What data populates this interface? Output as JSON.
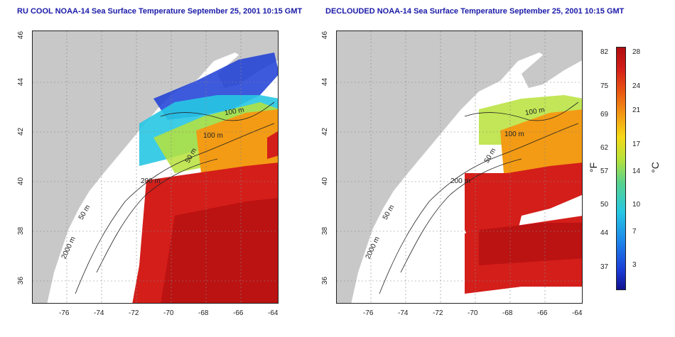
{
  "titles": {
    "left": "RU COOL NOAA-14 Sea Surface Temperature September 25, 2001 10:15 GMT",
    "right": "DECLOUDED NOAA-14 Sea Surface Temperature September 25, 2001 10:15 GMT"
  },
  "axes": {
    "lon_ticks": [
      "-76",
      "-74",
      "-72",
      "-70",
      "-68",
      "-66",
      "-64"
    ],
    "lat_ticks": [
      "46",
      "44",
      "42",
      "40",
      "38",
      "36"
    ]
  },
  "contours": {
    "left": [
      "100 m",
      "100 m",
      "50 m",
      "200 m",
      "50 m",
      "2000 m"
    ],
    "right": [
      "100 m",
      "100 m",
      "50 m",
      "200 m",
      "50 m",
      "2000 m"
    ]
  },
  "colorbar": {
    "fahrenheit": [
      "82",
      "75",
      "69",
      "62",
      "57",
      "50",
      "44",
      "37"
    ],
    "celsius": [
      "28",
      "24",
      "21",
      "17",
      "14",
      "10",
      "7",
      "3"
    ],
    "unit_f": "°F",
    "unit_c": "°C"
  },
  "colors": {
    "land": "#c8c8c8",
    "sst_warm": "#d41e1a",
    "sst_mid": "#f39b14",
    "sst_cool": "#27c7e3",
    "sst_cold": "#1b3cd6",
    "title": "#1a1aa8"
  }
}
